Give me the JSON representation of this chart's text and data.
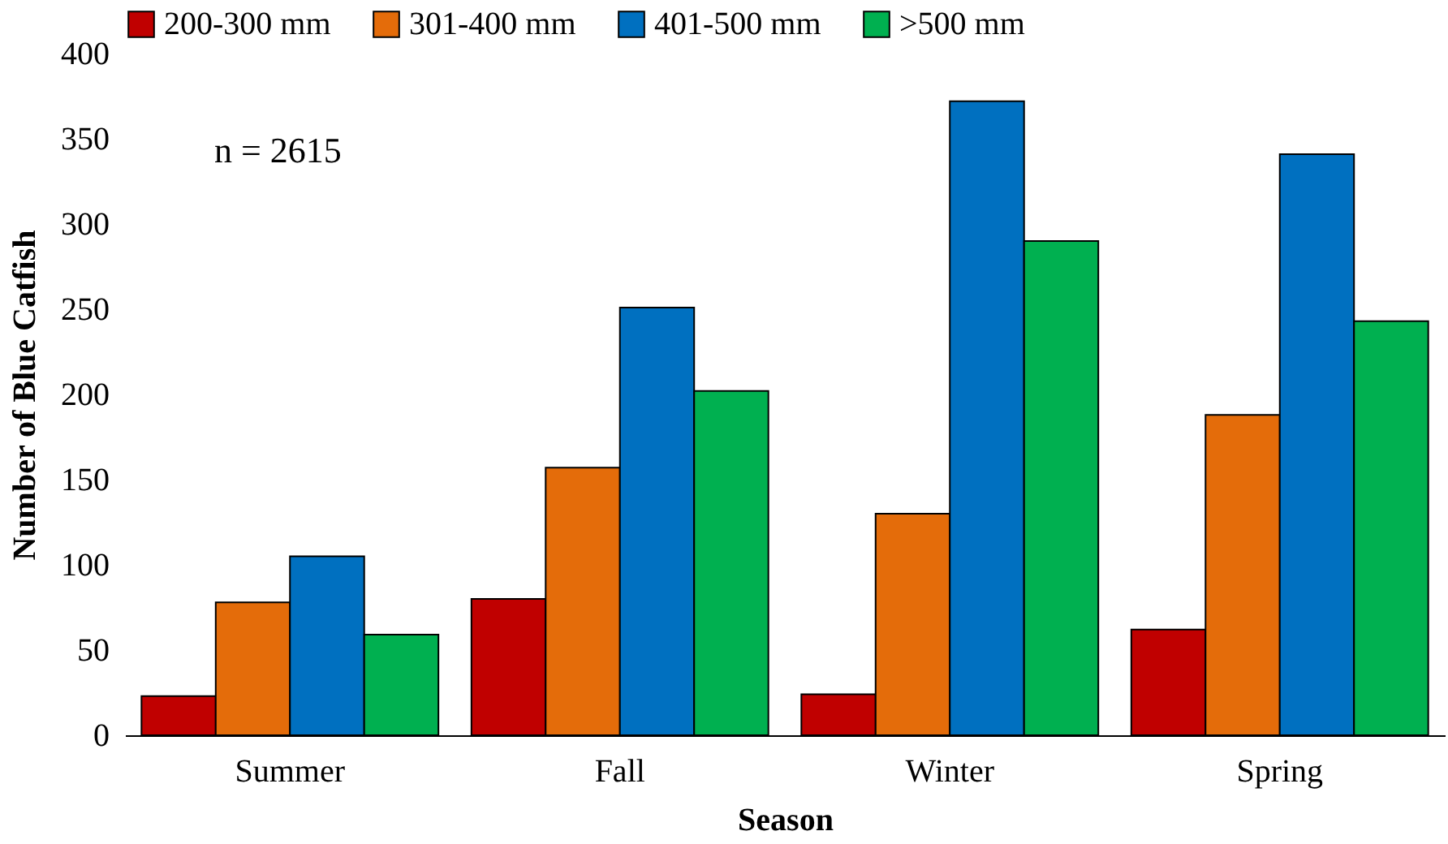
{
  "chart_data": {
    "type": "bar",
    "xlabel": "Season",
    "ylabel": "Number of Blue Catfish",
    "categories": [
      "Summer",
      "Fall",
      "Winter",
      "Spring"
    ],
    "series": [
      {
        "name": "200-300 mm",
        "color": "#c00000",
        "values": [
          23,
          80,
          24,
          62
        ]
      },
      {
        "name": "301-400 mm",
        "color": "#e46c0a",
        "values": [
          78,
          157,
          130,
          188
        ]
      },
      {
        "name": "401-500 mm",
        "color": "#0070c0",
        "values": [
          105,
          251,
          372,
          341
        ]
      },
      {
        "name": ">500 mm",
        "color": "#00b050",
        "values": [
          59,
          202,
          290,
          243
        ]
      }
    ],
    "ylim": [
      0,
      400
    ],
    "yticks": [
      0,
      50,
      100,
      150,
      200,
      250,
      300,
      350,
      400
    ],
    "grid": false,
    "legend": "top",
    "annotations": [
      "n = 2615"
    ]
  }
}
